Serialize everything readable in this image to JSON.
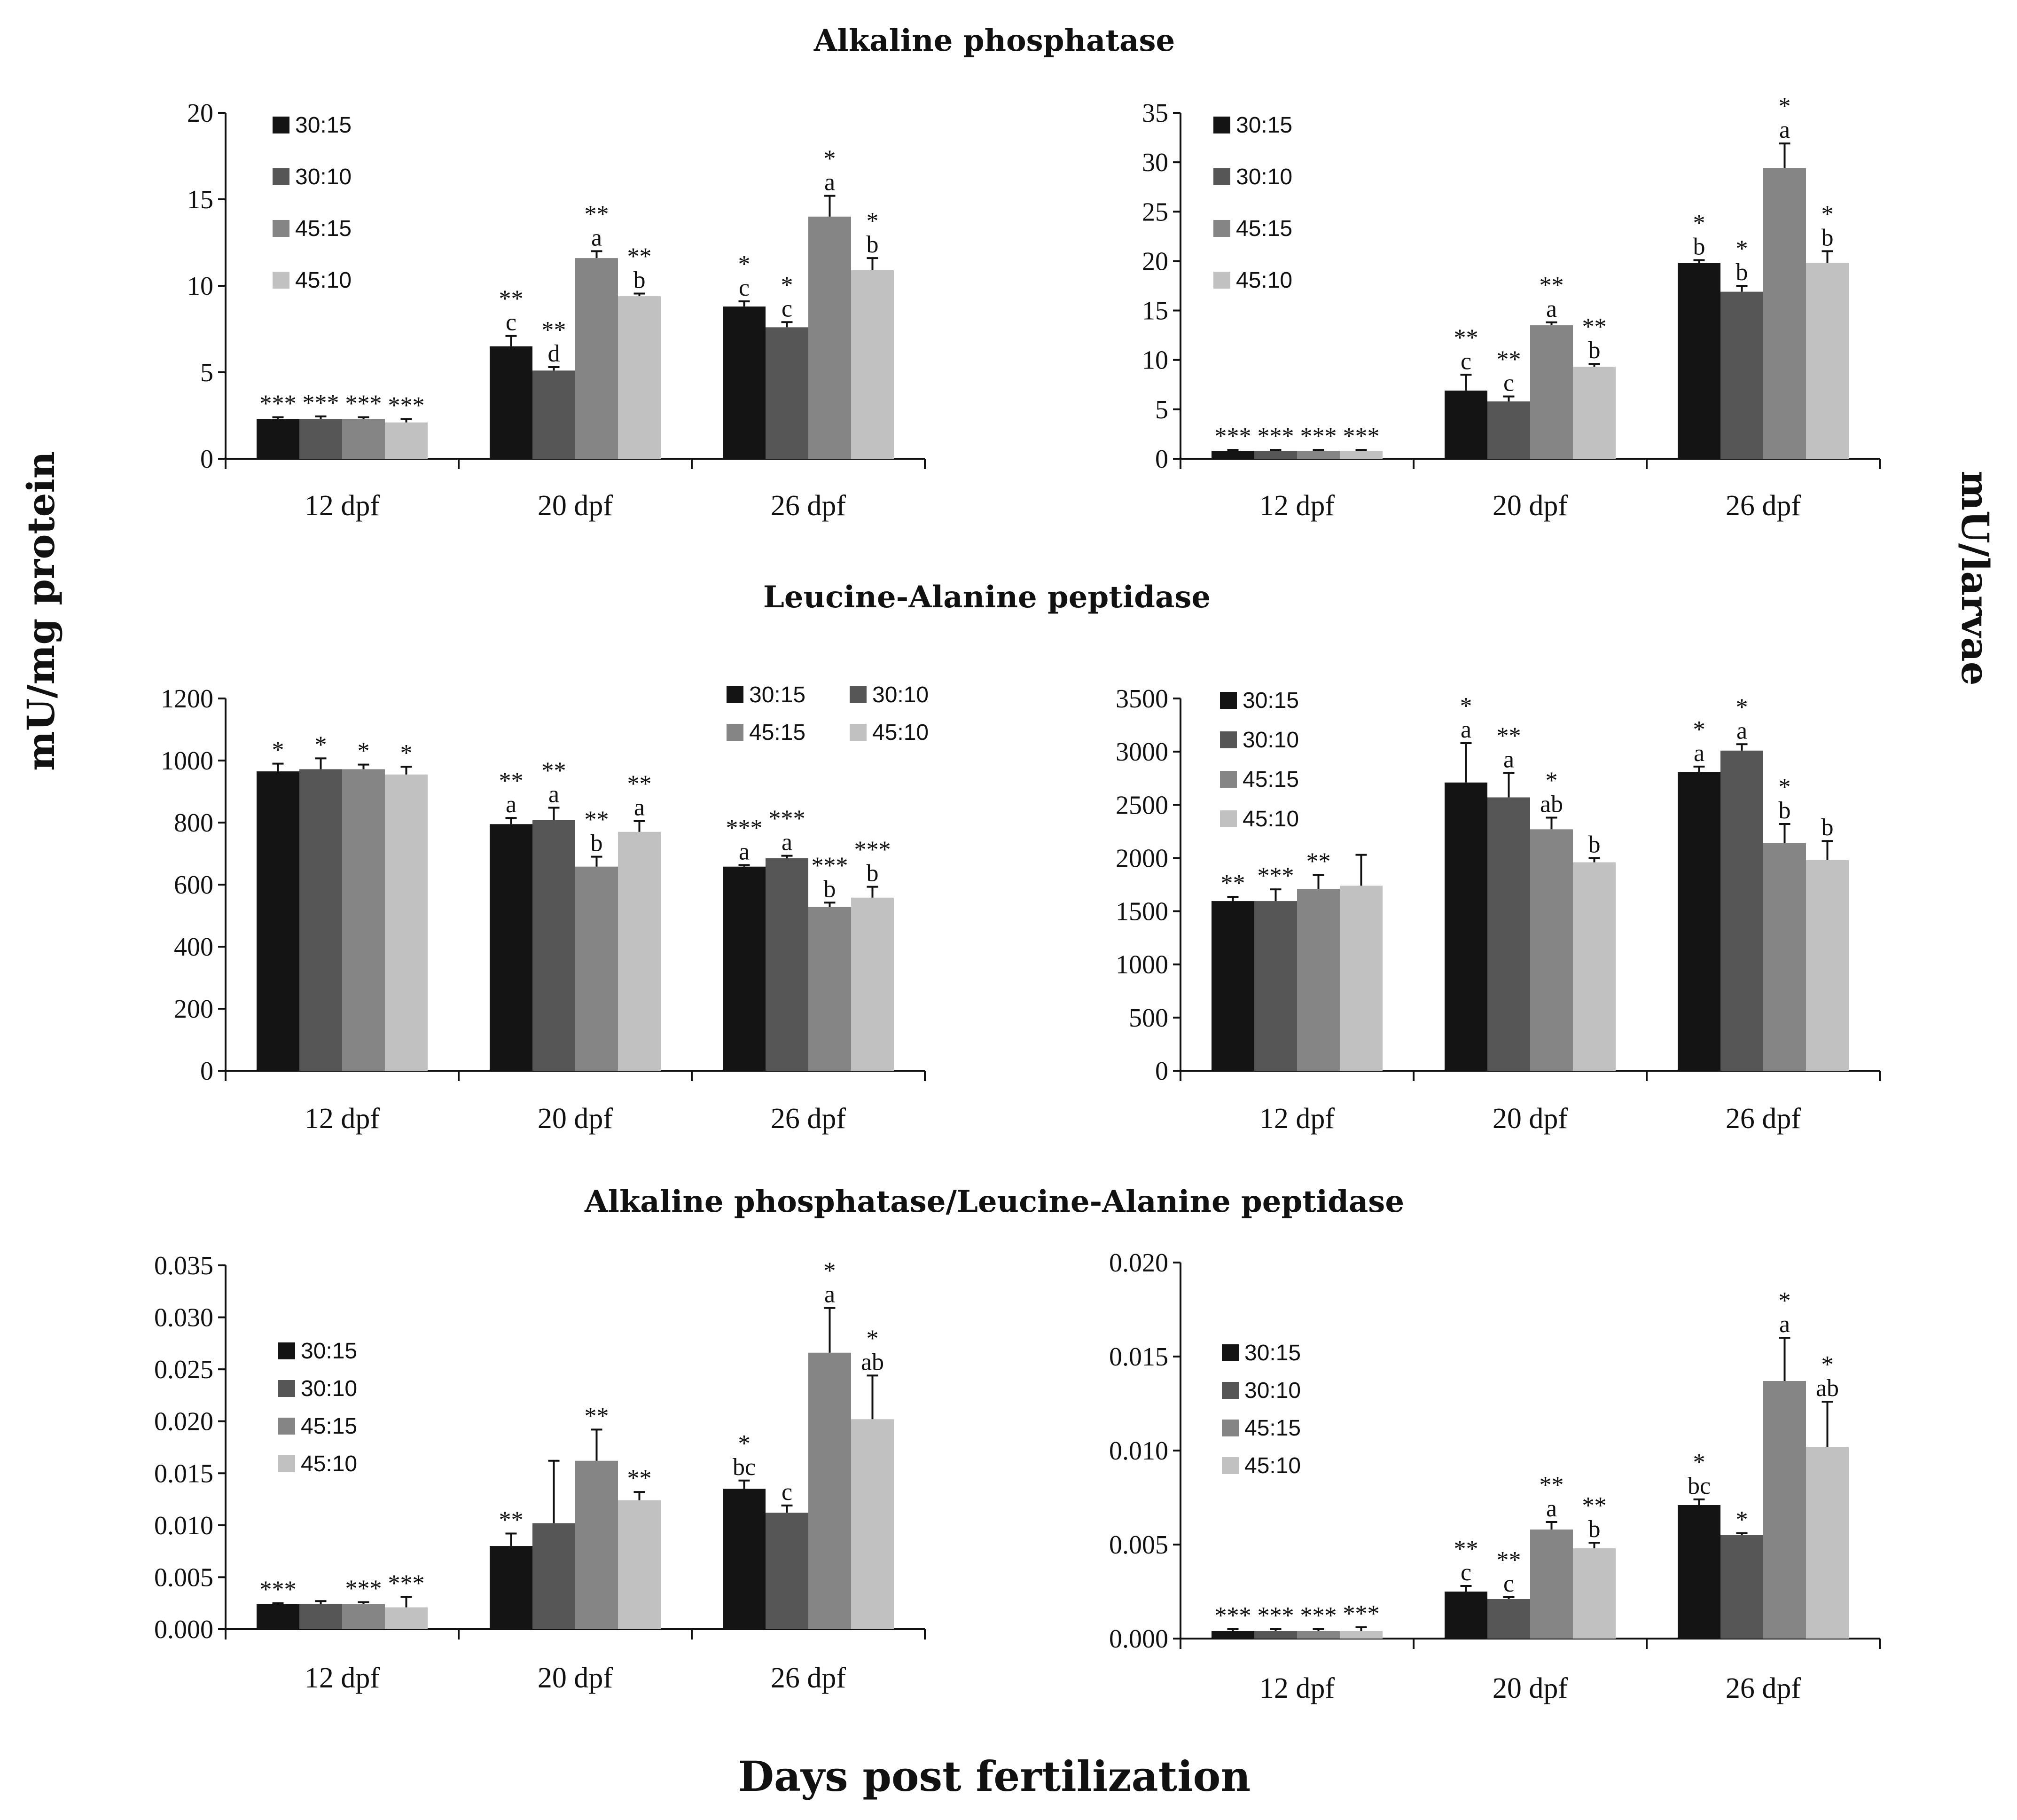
{
  "titles": {
    "section_1": "Alkaline phosphatase",
    "section_2": "Leucine-Alanine peptidase",
    "section_3": "Alkaline phosphatase/Leucine-Alanine peptidase",
    "y_left": "mU/mg protein",
    "y_right": "mU/larvae",
    "x_bottom": "Days post fertilization"
  },
  "colors": {
    "30:15": "#141414",
    "30:10": "#565656",
    "45:15": "#858585",
    "45:10": "#c1c1c1"
  },
  "chart_data": [
    {
      "id": "alp-protein",
      "type": "bar",
      "title": "Alkaline phosphatase",
      "ylabel": "mU/mg protein",
      "xlabel": "",
      "categories": [
        "12 dpf",
        "20 dpf",
        "26 dpf"
      ],
      "ylim": [
        0,
        20
      ],
      "yticks": [
        "0",
        "5",
        "10",
        "15",
        "20"
      ],
      "legend": "top-left",
      "series": [
        {
          "name": "30:15",
          "values": [
            2.3,
            6.5,
            8.8
          ],
          "errors": [
            0.1,
            0.6,
            0.3
          ],
          "labels": [
            [
              "***"
            ],
            [
              "**",
              "c"
            ],
            [
              "*",
              "c"
            ]
          ]
        },
        {
          "name": "30:10",
          "values": [
            2.3,
            5.1,
            7.6
          ],
          "errors": [
            0.15,
            0.2,
            0.3
          ],
          "labels": [
            [
              "***"
            ],
            [
              "**",
              "d"
            ],
            [
              "*",
              "c"
            ]
          ]
        },
        {
          "name": "45:15",
          "values": [
            2.3,
            11.6,
            14.0
          ],
          "errors": [
            0.1,
            0.4,
            1.2
          ],
          "labels": [
            [
              "***"
            ],
            [
              "**",
              "a"
            ],
            [
              "*",
              "a"
            ]
          ]
        },
        {
          "name": "45:10",
          "values": [
            2.1,
            9.4,
            10.9
          ],
          "errors": [
            0.2,
            0.15,
            0.7
          ],
          "labels": [
            [
              "***"
            ],
            [
              "**",
              "b"
            ],
            [
              "*",
              "b"
            ]
          ]
        }
      ]
    },
    {
      "id": "alp-larvae",
      "type": "bar",
      "title": "Alkaline phosphatase",
      "ylabel": "mU/larvae",
      "xlabel": "",
      "categories": [
        "12 dpf",
        "20 dpf",
        "26 dpf"
      ],
      "ylim": [
        0,
        35
      ],
      "yticks": [
        "0",
        "5",
        "10",
        "15",
        "20",
        "25",
        "30",
        "35"
      ],
      "legend": "top-left",
      "series": [
        {
          "name": "30:15",
          "values": [
            0.8,
            6.9,
            19.8
          ],
          "errors": [
            0.1,
            1.6,
            0.3
          ],
          "labels": [
            [
              "***"
            ],
            [
              "**",
              "c"
            ],
            [
              "*",
              "b"
            ]
          ]
        },
        {
          "name": "30:10",
          "values": [
            0.8,
            5.8,
            16.9
          ],
          "errors": [
            0.1,
            0.5,
            0.6
          ],
          "labels": [
            [
              "***"
            ],
            [
              "**",
              "c"
            ],
            [
              "*",
              "b"
            ]
          ]
        },
        {
          "name": "45:15",
          "values": [
            0.8,
            13.5,
            29.4
          ],
          "errors": [
            0.1,
            0.3,
            2.5
          ],
          "labels": [
            [
              "***"
            ],
            [
              "**",
              "a"
            ],
            [
              "*",
              "a"
            ]
          ]
        },
        {
          "name": "45:10",
          "values": [
            0.8,
            9.3,
            19.8
          ],
          "errors": [
            0.1,
            0.3,
            1.2
          ],
          "labels": [
            [
              "***"
            ],
            [
              "**",
              "b"
            ],
            [
              "*",
              "b"
            ]
          ]
        }
      ]
    },
    {
      "id": "lap-protein",
      "type": "bar",
      "title": "Leucine-Alanine peptidase",
      "ylabel": "mU/mg protein",
      "xlabel": "",
      "categories": [
        "12 dpf",
        "20 dpf",
        "26 dpf"
      ],
      "ylim": [
        0,
        1200
      ],
      "yticks": [
        "0",
        "200",
        "400",
        "600",
        "800",
        "1000",
        "1200"
      ],
      "legend": "top-right",
      "series": [
        {
          "name": "30:15",
          "values": [
            965,
            795,
            658
          ],
          "errors": [
            25,
            20,
            5
          ],
          "labels": [
            [
              "*"
            ],
            [
              "**",
              "a"
            ],
            [
              "***",
              "a"
            ]
          ]
        },
        {
          "name": "30:10",
          "values": [
            972,
            808,
            685
          ],
          "errors": [
            35,
            40,
            8
          ],
          "labels": [
            [
              "*"
            ],
            [
              "**",
              "a"
            ],
            [
              "***",
              "a"
            ]
          ]
        },
        {
          "name": "45:15",
          "values": [
            972,
            658,
            528
          ],
          "errors": [
            15,
            32,
            14
          ],
          "labels": [
            [
              "*"
            ],
            [
              "**",
              "b"
            ],
            [
              "***",
              "b"
            ]
          ]
        },
        {
          "name": "45:10",
          "values": [
            955,
            770,
            558
          ],
          "errors": [
            25,
            35,
            35
          ],
          "labels": [
            [
              "*"
            ],
            [
              "**",
              "a"
            ],
            [
              "***",
              "b"
            ]
          ]
        }
      ]
    },
    {
      "id": "lap-larvae",
      "type": "bar",
      "title": "Leucine-Alanine peptidase",
      "ylabel": "mU/larvae",
      "xlabel": "",
      "categories": [
        "12 dpf",
        "20 dpf",
        "26 dpf"
      ],
      "ylim": [
        0,
        3500
      ],
      "yticks": [
        "0",
        "500",
        "1000",
        "1500",
        "2000",
        "2500",
        "3000",
        "3500"
      ],
      "legend": "top-left",
      "series": [
        {
          "name": "30:15",
          "values": [
            1595,
            2710,
            2810
          ],
          "errors": [
            40,
            370,
            50
          ],
          "labels": [
            [
              "**"
            ],
            [
              "*",
              "a"
            ],
            [
              "*",
              "a"
            ]
          ]
        },
        {
          "name": "30:10",
          "values": [
            1595,
            2570,
            3010
          ],
          "errors": [
            110,
            230,
            60
          ],
          "labels": [
            [
              "***"
            ],
            [
              "**",
              "a"
            ],
            [
              "*",
              "a"
            ]
          ]
        },
        {
          "name": "45:15",
          "values": [
            1710,
            2270,
            2140
          ],
          "errors": [
            130,
            110,
            180
          ],
          "labels": [
            [
              "**"
            ],
            [
              "*",
              "ab"
            ],
            [
              "*",
              "b"
            ]
          ]
        },
        {
          "name": "45:10",
          "values": [
            1740,
            1960,
            1980
          ],
          "errors": [
            290,
            40,
            180
          ],
          "labels": [
            [
              ""
            ],
            [
              "b"
            ],
            [
              "b"
            ]
          ]
        }
      ]
    },
    {
      "id": "ratio-protein",
      "type": "bar",
      "title": "Alkaline phosphatase/Leucine-Alanine peptidase",
      "ylabel": "mU/mg protein",
      "xlabel": "Days post fertilization",
      "categories": [
        "12 dpf",
        "20 dpf",
        "26 dpf"
      ],
      "ylim": [
        0,
        0.035
      ],
      "yticks": [
        "0.000",
        "0.005",
        "0.010",
        "0.015",
        "0.020",
        "0.025",
        "0.030",
        "0.035"
      ],
      "legend": "left",
      "series": [
        {
          "name": "30:15",
          "values": [
            0.0024,
            0.008,
            0.0135
          ],
          "errors": [
            0.0001,
            0.0012,
            0.0008
          ],
          "labels": [
            [
              "***"
            ],
            [
              "**"
            ],
            [
              "*",
              "bc"
            ]
          ]
        },
        {
          "name": "30:10",
          "values": [
            0.0024,
            0.0102,
            0.0112
          ],
          "errors": [
            0.0003,
            0.006,
            0.0007
          ],
          "labels": [
            [
              ""
            ],
            [
              ""
            ],
            [
              "c"
            ]
          ]
        },
        {
          "name": "45:15",
          "values": [
            0.0024,
            0.0162,
            0.0266
          ],
          "errors": [
            0.0002,
            0.003,
            0.0043
          ],
          "labels": [
            [
              "***"
            ],
            [
              "**"
            ],
            [
              "*",
              "a"
            ]
          ]
        },
        {
          "name": "45:10",
          "values": [
            0.0021,
            0.0124,
            0.0202
          ],
          "errors": [
            0.001,
            0.0008,
            0.0042
          ],
          "labels": [
            [
              "***"
            ],
            [
              "**"
            ],
            [
              "*",
              "ab"
            ]
          ]
        }
      ]
    },
    {
      "id": "ratio-larvae",
      "type": "bar",
      "title": "Alkaline phosphatase/Leucine-Alanine peptidase",
      "ylabel": "mU/larvae",
      "xlabel": "Days post fertilization",
      "categories": [
        "12 dpf",
        "20 dpf",
        "26 dpf"
      ],
      "ylim": [
        0,
        0.02
      ],
      "yticks": [
        "0.000",
        "0.005",
        "0.010",
        "0.015",
        "0.020"
      ],
      "legend": "left",
      "series": [
        {
          "name": "30:15",
          "values": [
            0.0004,
            0.0025,
            0.0071
          ],
          "errors": [
            0.0001,
            0.0003,
            0.0003
          ],
          "labels": [
            [
              "***"
            ],
            [
              "**",
              "c"
            ],
            [
              "*",
              "bc"
            ]
          ]
        },
        {
          "name": "30:10",
          "values": [
            0.0004,
            0.0021,
            0.0055
          ],
          "errors": [
            0.0001,
            0.0001,
            0.0001
          ],
          "labels": [
            [
              "***"
            ],
            [
              "**",
              "c"
            ],
            [
              "*"
            ]
          ]
        },
        {
          "name": "45:15",
          "values": [
            0.0004,
            0.0058,
            0.0137
          ],
          "errors": [
            0.0001,
            0.0004,
            0.0023
          ],
          "labels": [
            [
              "***"
            ],
            [
              "**",
              "a"
            ],
            [
              "*",
              "a"
            ]
          ]
        },
        {
          "name": "45:10",
          "values": [
            0.0004,
            0.0048,
            0.0102
          ],
          "errors": [
            0.0002,
            0.0003,
            0.0024
          ],
          "labels": [
            [
              "***"
            ],
            [
              "**",
              "b"
            ],
            [
              "*",
              "ab"
            ]
          ]
        }
      ]
    }
  ]
}
